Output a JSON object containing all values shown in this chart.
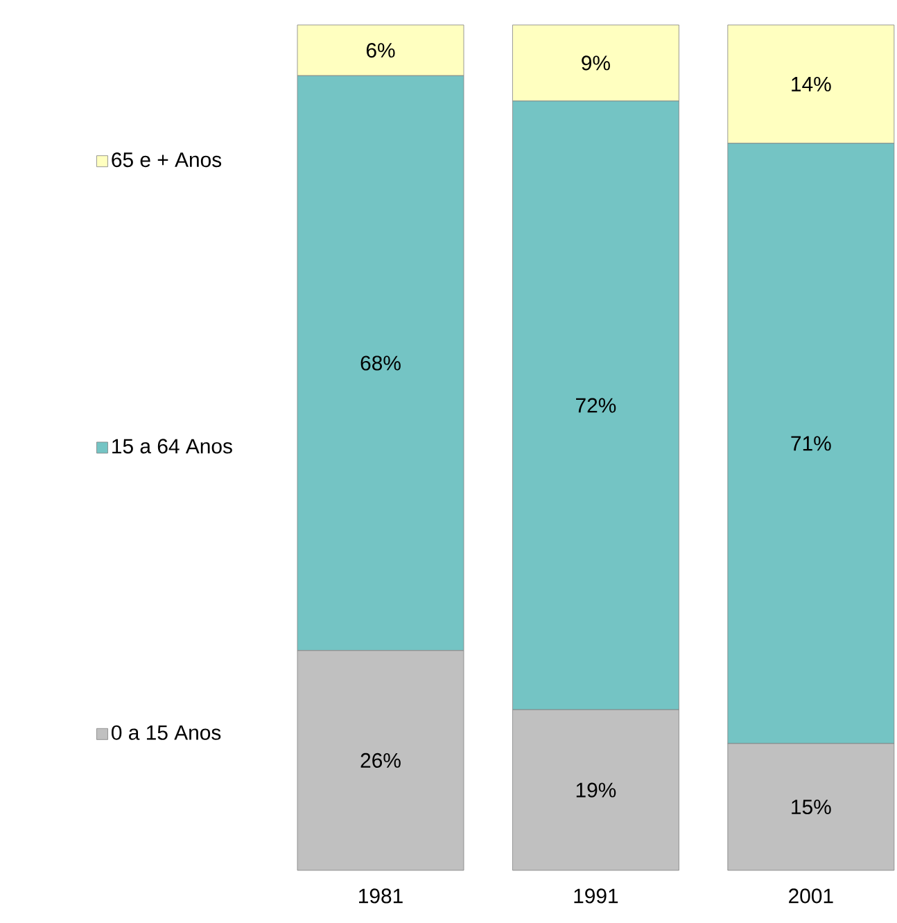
{
  "chart_data": {
    "type": "bar",
    "stacked": true,
    "categories": [
      "1981",
      "1991",
      "2001"
    ],
    "legend": "left",
    "series": [
      {
        "name": "0 a 15 Anos",
        "color": "#c0c0c0",
        "values": [
          26,
          19,
          15
        ],
        "value_labels": [
          "26%",
          "19%",
          "15%"
        ]
      },
      {
        "name": "15 a 64 Anos",
        "color": "#74c4c4",
        "values": [
          68,
          72,
          71
        ],
        "value_labels": [
          "68%",
          "72%",
          "71%"
        ]
      },
      {
        "name": "65 e + Anos",
        "color": "#ffffc0",
        "values": [
          6,
          9,
          14
        ],
        "value_labels": [
          "6%",
          "9%",
          "14%"
        ]
      }
    ]
  }
}
